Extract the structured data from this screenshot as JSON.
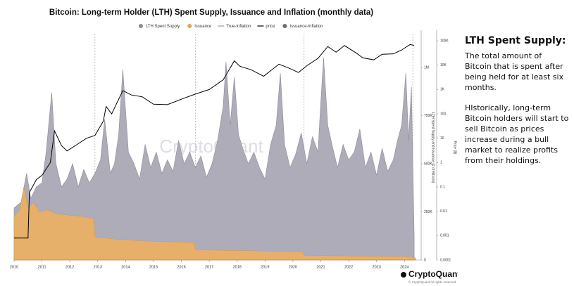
{
  "chart_data": {
    "type": "area",
    "title": "Bitcoin: Long-term Holder (LTH) Spent Supply, Issuance and Inflation (monthly data)",
    "legend": [
      {
        "name": "LTH Spent Supply",
        "color": "#8e8c98",
        "kind": "dot"
      },
      {
        "name": "Issuance",
        "color": "#e0a55a",
        "kind": "dot"
      },
      {
        "name": "True-Inflation",
        "color": "#9a9a9a",
        "kind": "line"
      },
      {
        "name": "price",
        "color": "#000000",
        "kind": "line"
      },
      {
        "name": "Issuance-Inflation",
        "color": "#6e6c78",
        "kind": "dot"
      }
    ],
    "watermark": "CryptoQuant",
    "ylabel": "LTH Spent Supply and Issuance (# of Bitcoin)",
    "y2label": "Price ($)",
    "xlim": [
      2010,
      2024.6
    ],
    "xticks": [
      2010,
      2011,
      2012,
      2013,
      2014,
      2015,
      2016,
      2017,
      2018,
      2019,
      2020,
      2021,
      2022,
      2023,
      2024
    ],
    "ylim": [
      0,
      1175000
    ],
    "yticks": [
      0,
      {
        "value": 250000,
        "label": "250K"
      },
      {
        "value": 500000,
        "label": "500K"
      },
      {
        "value": 750000,
        "label": "750K"
      },
      {
        "value": 1000000,
        "label": "1M"
      }
    ],
    "y2lim": [
      0.0001,
      195000
    ],
    "y2log": true,
    "y2ticks": [
      0.0001,
      0.001,
      0.01,
      0.1,
      1,
      10,
      100,
      {
        "value": 1000,
        "label": "1K"
      },
      {
        "value": 10000,
        "label": "10K"
      },
      {
        "value": 100000,
        "label": "100K"
      }
    ],
    "halvings": [
      2012.9,
      2016.5,
      2020.4,
      2024.3
    ],
    "series": [
      {
        "style": "area",
        "color": "#8e8c98",
        "fill": "#aeacb9",
        "x": [
          2010.0,
          2010.25,
          2010.45,
          2010.6,
          2010.8,
          2011.0,
          2011.15,
          2011.35,
          2011.5,
          2011.7,
          2011.9,
          2012.1,
          2012.3,
          2012.5,
          2012.7,
          2012.9,
          2013.1,
          2013.25,
          2013.45,
          2013.6,
          2013.75,
          2013.9,
          2014.1,
          2014.3,
          2014.5,
          2014.7,
          2014.9,
          2015.1,
          2015.3,
          2015.5,
          2015.7,
          2015.9,
          2016.1,
          2016.3,
          2016.5,
          2016.7,
          2016.9,
          2017.1,
          2017.3,
          2017.5,
          2017.6,
          2017.75,
          2017.9,
          2018.05,
          2018.2,
          2018.4,
          2018.6,
          2018.8,
          2019.0,
          2019.2,
          2019.4,
          2019.55,
          2019.7,
          2019.9,
          2020.1,
          2020.3,
          2020.5,
          2020.7,
          2020.9,
          2021.0,
          2021.1,
          2021.25,
          2021.4,
          2021.6,
          2021.8,
          2022.0,
          2022.2,
          2022.4,
          2022.6,
          2022.8,
          2023.0,
          2023.2,
          2023.4,
          2023.6,
          2023.75,
          2023.9,
          2024.05,
          2024.15,
          2024.25,
          2024.35
        ],
        "values": [
          270000,
          300000,
          450000,
          320000,
          380000,
          400000,
          560000,
          870000,
          500000,
          380000,
          420000,
          500000,
          380000,
          470000,
          400000,
          450000,
          520000,
          730000,
          450000,
          500000,
          650000,
          990000,
          560000,
          500000,
          420000,
          600000,
          480000,
          560000,
          450000,
          520000,
          460000,
          620000,
          500000,
          560000,
          480000,
          540000,
          430000,
          500000,
          620000,
          800000,
          1030000,
          700000,
          950000,
          650000,
          580000,
          500000,
          560000,
          480000,
          420000,
          600000,
          700000,
          970000,
          600000,
          480000,
          550000,
          660000,
          500000,
          640000,
          560000,
          820000,
          1050000,
          700000,
          600000,
          480000,
          600000,
          520000,
          560000,
          680000,
          480000,
          560000,
          440000,
          580000,
          460000,
          520000,
          620000,
          700000,
          970000,
          620000,
          900000,
          120000
        ]
      },
      {
        "style": "area",
        "color": "#d99a45",
        "fill": "#e6b06a",
        "x": [
          2010.0,
          2010.2,
          2010.35,
          2010.5,
          2010.7,
          2010.9,
          2011.2,
          2011.5,
          2011.8,
          2012.2,
          2012.5,
          2012.85,
          2012.9,
          2013.5,
          2014.5,
          2015.5,
          2016.45,
          2016.5,
          2017.5,
          2018.5,
          2019.5,
          2020.35,
          2020.4,
          2021.5,
          2022.5,
          2023.5,
          2024.25,
          2024.3,
          2024.4
        ],
        "values": [
          230000,
          260000,
          380000,
          270000,
          300000,
          250000,
          260000,
          240000,
          235000,
          230000,
          225000,
          215000,
          120000,
          110000,
          100000,
          95000,
          90000,
          55000,
          50000,
          48000,
          45000,
          42000,
          25000,
          22000,
          20000,
          19000,
          18000,
          12000,
          11000
        ]
      },
      {
        "style": "line",
        "axis": "y2",
        "color": "#000000",
        "x": [
          2010.0,
          2010.5,
          2010.55,
          2010.8,
          2011.0,
          2011.3,
          2011.45,
          2011.7,
          2011.9,
          2012.2,
          2012.6,
          2012.9,
          2013.2,
          2013.3,
          2013.5,
          2013.9,
          2014.2,
          2014.6,
          2015.0,
          2015.5,
          2016.0,
          2016.5,
          2017.0,
          2017.5,
          2017.9,
          2018.1,
          2018.5,
          2018.95,
          2019.5,
          2019.9,
          2020.2,
          2020.5,
          2020.9,
          2021.25,
          2021.55,
          2021.85,
          2022.3,
          2022.5,
          2022.9,
          2023.2,
          2023.6,
          2023.9,
          2024.2,
          2024.35
        ],
        "values": [
          0.0008,
          0.0008,
          0.06,
          0.2,
          0.3,
          1,
          20,
          5,
          3,
          5,
          10,
          13,
          50,
          200,
          100,
          900,
          600,
          500,
          250,
          240,
          400,
          650,
          1000,
          2500,
          15000,
          9000,
          6500,
          3500,
          11000,
          7200,
          5000,
          9500,
          19000,
          58000,
          34000,
          64000,
          30000,
          20000,
          16500,
          28000,
          29000,
          42000,
          70000,
          65000
        ]
      }
    ]
  },
  "side_panel": {
    "title": "LTH Spent Supply:",
    "paragraphs": [
      "The total amount of Bitcoin that is spent after being held for at least six months.",
      "HIstorically, long-term Bitcoin holders will start to sell Bitcoin as prices increase during a bull market to realize profits from their holdings."
    ]
  },
  "footer": {
    "brand": "CryptoQuant",
    "copyright": "© CryptoQuant All rights reserved."
  }
}
